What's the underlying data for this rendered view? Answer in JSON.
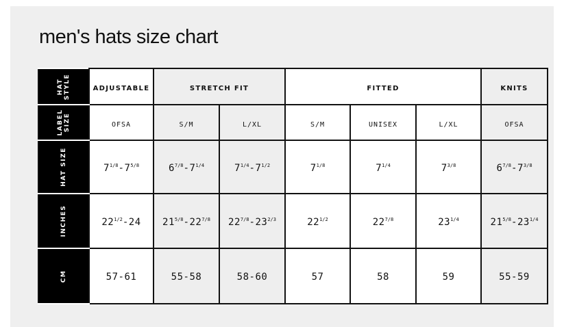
{
  "title": "men's hats size chart",
  "colors": {
    "header_bg": "#000000",
    "shaded_cell": "#eeeeee",
    "panel_bg": "#efefef"
  },
  "row_headers": [
    "HAT\nSTYLE",
    "LABEL\nSIZE",
    "HAT SIZE",
    "INCHES",
    "CM"
  ],
  "styles": [
    {
      "label": "ADJUSTABLE",
      "span": 1,
      "shaded": false
    },
    {
      "label": "STRETCH FIT",
      "span": 2,
      "shaded": true
    },
    {
      "label": "FITTED",
      "span": 3,
      "shaded": false
    },
    {
      "label": "KNITS",
      "span": 1,
      "shaded": true
    }
  ],
  "columns": [
    {
      "label_size": "OFSA",
      "shaded": false,
      "hat_size": [
        {
          "t": "7",
          "s": "1/8"
        },
        {
          "t": "-7",
          "s": "5/8"
        }
      ],
      "inches": [
        {
          "t": "22",
          "s": "1/2"
        },
        {
          "t": "-24"
        }
      ],
      "cm": "57-61"
    },
    {
      "label_size": "S/M",
      "shaded": true,
      "hat_size": [
        {
          "t": "6",
          "s": "7/8"
        },
        {
          "t": "-7",
          "s": "1/4"
        }
      ],
      "inches": [
        {
          "t": "21",
          "s": "5/8"
        },
        {
          "t": "-22",
          "s": "7/8"
        }
      ],
      "cm": "55-58"
    },
    {
      "label_size": "L/XL",
      "shaded": true,
      "hat_size": [
        {
          "t": "7",
          "s": "1/4"
        },
        {
          "t": "-7",
          "s": "1/2"
        }
      ],
      "inches": [
        {
          "t": "22",
          "s": "7/8"
        },
        {
          "t": "-23",
          "s": "2/3"
        }
      ],
      "cm": "58-60"
    },
    {
      "label_size": "S/M",
      "shaded": false,
      "hat_size": [
        {
          "t": "7",
          "s": "1/8"
        }
      ],
      "inches": [
        {
          "t": "22",
          "s": "1/2"
        }
      ],
      "cm": "57"
    },
    {
      "label_size": "UNISEX",
      "shaded": false,
      "hat_size": [
        {
          "t": "7",
          "s": "1/4"
        }
      ],
      "inches": [
        {
          "t": "22",
          "s": "7/8"
        }
      ],
      "cm": "58"
    },
    {
      "label_size": "L/XL",
      "shaded": false,
      "hat_size": [
        {
          "t": "7",
          "s": "3/8"
        }
      ],
      "inches": [
        {
          "t": "23",
          "s": "1/4"
        }
      ],
      "cm": "59"
    },
    {
      "label_size": "OFSA",
      "shaded": true,
      "hat_size": [
        {
          "t": "6",
          "s": "7/8"
        },
        {
          "t": "-7",
          "s": "3/8"
        }
      ],
      "inches": [
        {
          "t": "21",
          "s": "5/8"
        },
        {
          "t": "-23",
          "s": "1/4"
        }
      ],
      "cm": "55-59"
    }
  ]
}
